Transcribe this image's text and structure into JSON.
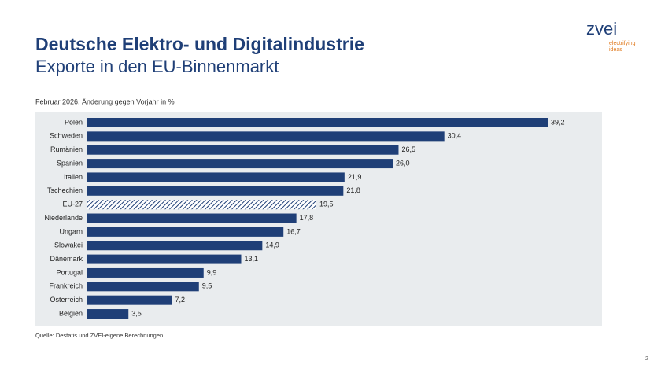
{
  "header": {
    "title": "Deutsche Elektro- und Digitalindustrie",
    "subtitle": "Exporte in den EU-Binnenmarkt",
    "logo": "zvei",
    "tagline_1": "electrifying",
    "tagline_2": "ideas"
  },
  "chart_data": {
    "type": "bar",
    "orientation": "horizontal",
    "subtitle": "Februar 2026, Änderung gegen Vorjahr in %",
    "categories": [
      "Polen",
      "Schweden",
      "Rumänien",
      "Spanien",
      "Italien",
      "Tschechien",
      "EU-27",
      "Niederlande",
      "Ungarn",
      "Slowakei",
      "Dänemark",
      "Portugal",
      "Frankreich",
      "Österreich",
      "Belgien"
    ],
    "values": [
      39.2,
      30.4,
      26.5,
      26.0,
      21.9,
      21.8,
      19.5,
      17.8,
      16.7,
      14.9,
      13.1,
      9.9,
      9.5,
      7.2,
      3.5
    ],
    "value_labels": [
      "39,2",
      "30,4",
      "26,5",
      "26,0",
      "21,9",
      "21,8",
      "19,5",
      "17,8",
      "16,7",
      "14,9",
      "13,1",
      "9,9",
      "9,5",
      "7,2",
      "3,5"
    ],
    "color": "#1f3f77",
    "hatched": [
      "EU-27"
    ],
    "source": "Quelle: Destatis und ZVEI-eigene Berechnungen"
  },
  "footer": {
    "page": "2"
  }
}
